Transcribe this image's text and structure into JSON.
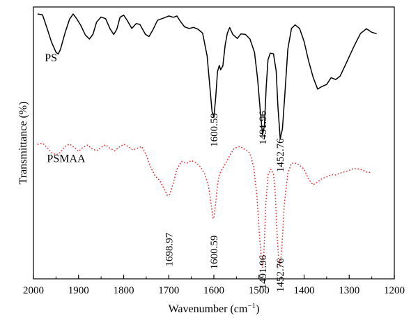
{
  "chart_data": {
    "type": "line",
    "title": "",
    "xlabel": "Wavenumber (cm",
    "xlabel_superscript": "−1",
    "xlabel_suffix": ")",
    "ylabel": "Transmittance (%)",
    "xlim": [
      2000,
      1200
    ],
    "x_reversed": true,
    "ylim": [
      0,
      100
    ],
    "y_ticks_shown": false,
    "grid": false,
    "legend": "none",
    "x_ticks": [
      2000,
      1900,
      1800,
      1700,
      1600,
      1500,
      1400,
      1300,
      1200
    ],
    "x_tick_labels": [
      "2000",
      "1900",
      "1800",
      "1700",
      "1600",
      "1500",
      "1400",
      "1300",
      "1200"
    ],
    "series": [
      {
        "name": "PS",
        "color": "#000000",
        "line_style": "solid",
        "label_at": [
          1975,
          80
        ],
        "points": [
          [
            1990,
            97.4
          ],
          [
            1980,
            97.1
          ],
          [
            1970,
            92.3
          ],
          [
            1960,
            87.1
          ],
          [
            1950,
            83.3
          ],
          [
            1945,
            82.7
          ],
          [
            1940,
            84.4
          ],
          [
            1930,
            90.4
          ],
          [
            1920,
            95.5
          ],
          [
            1912,
            97.4
          ],
          [
            1905,
            95.9
          ],
          [
            1895,
            93.2
          ],
          [
            1885,
            89.7
          ],
          [
            1876,
            88.2
          ],
          [
            1868,
            90.0
          ],
          [
            1860,
            94.4
          ],
          [
            1850,
            96.3
          ],
          [
            1840,
            95.7
          ],
          [
            1830,
            91.9
          ],
          [
            1822,
            89.9
          ],
          [
            1815,
            91.9
          ],
          [
            1808,
            96.2
          ],
          [
            1800,
            97.0
          ],
          [
            1792,
            95.0
          ],
          [
            1782,
            92.1
          ],
          [
            1772,
            93.9
          ],
          [
            1764,
            93.6
          ],
          [
            1752,
            90.0
          ],
          [
            1744,
            89.1
          ],
          [
            1736,
            91.3
          ],
          [
            1725,
            95.1
          ],
          [
            1710,
            96.0
          ],
          [
            1700,
            96.7
          ],
          [
            1690,
            96.2
          ],
          [
            1682,
            96.7
          ],
          [
            1675,
            94.9
          ],
          [
            1665,
            92.7
          ],
          [
            1655,
            92.1
          ],
          [
            1645,
            92.5
          ],
          [
            1635,
            91.8
          ],
          [
            1625,
            90.4
          ],
          [
            1615,
            82.0
          ],
          [
            1608,
            69.0
          ],
          [
            1604,
            61.5
          ],
          [
            1600,
            59.5
          ],
          [
            1596,
            66.6
          ],
          [
            1592,
            76.2
          ],
          [
            1588,
            78.5
          ],
          [
            1585,
            76.9
          ],
          [
            1580,
            78.3
          ],
          [
            1575,
            86.0
          ],
          [
            1570,
            90.4
          ],
          [
            1565,
            92.4
          ],
          [
            1558,
            89.9
          ],
          [
            1548,
            88.4
          ],
          [
            1540,
            90.1
          ],
          [
            1530,
            89.9
          ],
          [
            1520,
            88.2
          ],
          [
            1510,
            83.3
          ],
          [
            1503,
            73.5
          ],
          [
            1497,
            61.5
          ],
          [
            1492,
            53.0
          ],
          [
            1488,
            56.2
          ],
          [
            1484,
            70.5
          ],
          [
            1480,
            80.6
          ],
          [
            1475,
            83.0
          ],
          [
            1468,
            82.8
          ],
          [
            1462,
            76.5
          ],
          [
            1458,
            63.5
          ],
          [
            1453,
            51.6
          ],
          [
            1448,
            55.1
          ],
          [
            1443,
            67.2
          ],
          [
            1436,
            84.6
          ],
          [
            1428,
            92.1
          ],
          [
            1420,
            93.4
          ],
          [
            1410,
            92.1
          ],
          [
            1400,
            87.3
          ],
          [
            1390,
            80.1
          ],
          [
            1380,
            74.2
          ],
          [
            1370,
            69.8
          ],
          [
            1360,
            70.8
          ],
          [
            1350,
            71.5
          ],
          [
            1340,
            74.0
          ],
          [
            1330,
            73.3
          ],
          [
            1320,
            74.6
          ],
          [
            1305,
            79.9
          ],
          [
            1290,
            85.3
          ],
          [
            1275,
            90.2
          ],
          [
            1262,
            92.0
          ],
          [
            1250,
            90.7
          ],
          [
            1240,
            90.2
          ]
        ]
      },
      {
        "name": "PSMAA",
        "color": "#e03c3c",
        "line_style": "dotted",
        "label_at": [
          1970,
          43
        ],
        "points": [
          [
            1990,
            49.5
          ],
          [
            1980,
            49.9
          ],
          [
            1970,
            48.4
          ],
          [
            1960,
            46.4
          ],
          [
            1950,
            45.6
          ],
          [
            1940,
            46.5
          ],
          [
            1930,
            48.7
          ],
          [
            1920,
            49.6
          ],
          [
            1910,
            48.4
          ],
          [
            1900,
            46.9
          ],
          [
            1890,
            48.4
          ],
          [
            1880,
            49.2
          ],
          [
            1870,
            47.8
          ],
          [
            1860,
            47.1
          ],
          [
            1850,
            48.4
          ],
          [
            1840,
            49.3
          ],
          [
            1830,
            48.0
          ],
          [
            1820,
            47.1
          ],
          [
            1810,
            48.4
          ],
          [
            1800,
            49.5
          ],
          [
            1790,
            48.7
          ],
          [
            1780,
            47.4
          ],
          [
            1770,
            48.0
          ],
          [
            1760,
            48.7
          ],
          [
            1750,
            45.6
          ],
          [
            1740,
            41.0
          ],
          [
            1730,
            37.8
          ],
          [
            1720,
            36.2
          ],
          [
            1710,
            33.0
          ],
          [
            1703,
            30.6
          ],
          [
            1698,
            31.0
          ],
          [
            1690,
            35.2
          ],
          [
            1682,
            40.3
          ],
          [
            1672,
            43.2
          ],
          [
            1660,
            42.5
          ],
          [
            1650,
            43.5
          ],
          [
            1640,
            42.8
          ],
          [
            1630,
            41.2
          ],
          [
            1620,
            38.5
          ],
          [
            1612,
            34.3
          ],
          [
            1606,
            27.6
          ],
          [
            1602,
            22.1
          ],
          [
            1600,
            22.5
          ],
          [
            1596,
            27.9
          ],
          [
            1592,
            34.6
          ],
          [
            1588,
            38.2
          ],
          [
            1582,
            40.3
          ],
          [
            1575,
            42.2
          ],
          [
            1565,
            45.3
          ],
          [
            1555,
            48.0
          ],
          [
            1542,
            48.7
          ],
          [
            1530,
            47.5
          ],
          [
            1520,
            46.2
          ],
          [
            1512,
            41.2
          ],
          [
            1505,
            31.3
          ],
          [
            1498,
            14.2
          ],
          [
            1494,
            6.5
          ],
          [
            1492,
            4.1
          ],
          [
            1489,
            10.0
          ],
          [
            1485,
            27.3
          ],
          [
            1480,
            38.2
          ],
          [
            1474,
            40.3
          ],
          [
            1468,
            38.8
          ],
          [
            1464,
            31.6
          ],
          [
            1460,
            16.4
          ],
          [
            1456,
            6.5
          ],
          [
            1453,
            4.5
          ],
          [
            1449,
            12.4
          ],
          [
            1444,
            27.3
          ],
          [
            1436,
            38.9
          ],
          [
            1428,
            42.6
          ],
          [
            1418,
            42.5
          ],
          [
            1410,
            41.8
          ],
          [
            1400,
            40.3
          ],
          [
            1390,
            36.6
          ],
          [
            1380,
            34.6
          ],
          [
            1370,
            35.6
          ],
          [
            1360,
            36.9
          ],
          [
            1350,
            37.5
          ],
          [
            1340,
            38.3
          ],
          [
            1330,
            38.2
          ],
          [
            1320,
            38.9
          ],
          [
            1305,
            39.6
          ],
          [
            1290,
            40.6
          ],
          [
            1275,
            40.3
          ],
          [
            1262,
            39.3
          ],
          [
            1250,
            39.0
          ]
        ]
      }
    ],
    "annotations": [
      {
        "text": "1600.59",
        "x": 1600,
        "y": 61.0,
        "series": "PS"
      },
      {
        "text": "1491.96",
        "x": 1492,
        "y": 61.8,
        "series": "PS"
      },
      {
        "text": "1452.76",
        "x": 1453,
        "y": 51.7,
        "series": "PS"
      },
      {
        "text": "1698.97",
        "x": 1700,
        "y": 17.0,
        "series": "PSMAA"
      },
      {
        "text": "1600.59",
        "x": 1600,
        "y": 16.0,
        "series": "PSMAA"
      },
      {
        "text": "1491.96",
        "x": 1492,
        "y": 8.8,
        "series": "PSMAA"
      },
      {
        "text": "1452.76",
        "x": 1453,
        "y": 7.6,
        "series": "PSMAA"
      }
    ]
  }
}
